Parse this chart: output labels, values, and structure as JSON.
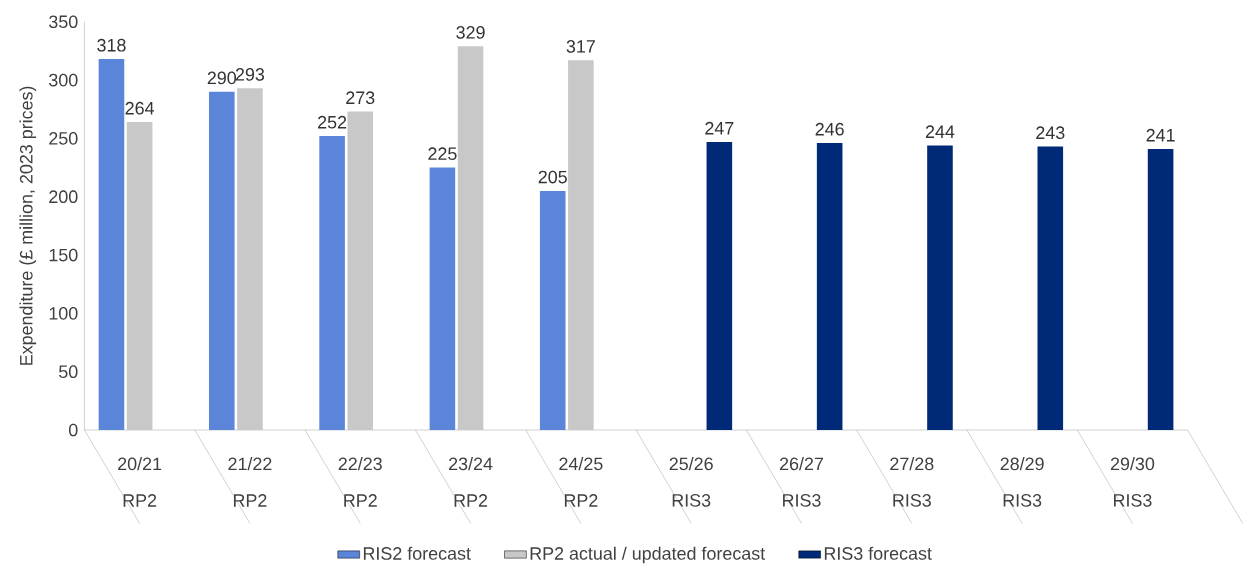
{
  "chart_data": {
    "type": "bar",
    "ylabel": "Expenditure (£ million, 2023 prices)",
    "categories": [
      "20/21",
      "21/22",
      "22/23",
      "23/24",
      "24/25",
      "25/26",
      "26/27",
      "27/28",
      "28/29",
      "29/30"
    ],
    "annotations": [
      "RP2",
      "RP2",
      "RP2",
      "RP2",
      "RP2",
      "RIS3",
      "RIS3",
      "RIS3",
      "RIS3",
      "RIS3"
    ],
    "series": [
      {
        "name": "RIS2 forecast",
        "color": "#5b85d9",
        "values": [
          318,
          290,
          252,
          225,
          205,
          null,
          null,
          null,
          null,
          null
        ]
      },
      {
        "name": "RP2 actual / updated forecast",
        "color": "#c8c8c8",
        "values": [
          264,
          293,
          273,
          329,
          317,
          null,
          null,
          null,
          null,
          null
        ]
      },
      {
        "name": "RIS3 forecast",
        "color": "#002a78",
        "values": [
          null,
          null,
          null,
          null,
          null,
          247,
          246,
          244,
          243,
          241
        ]
      }
    ],
    "ylim": [
      0,
      350
    ],
    "yticks": [
      0,
      50,
      100,
      150,
      200,
      250,
      300,
      350
    ],
    "data_labels": true,
    "grid": false,
    "legend": "bottom"
  }
}
